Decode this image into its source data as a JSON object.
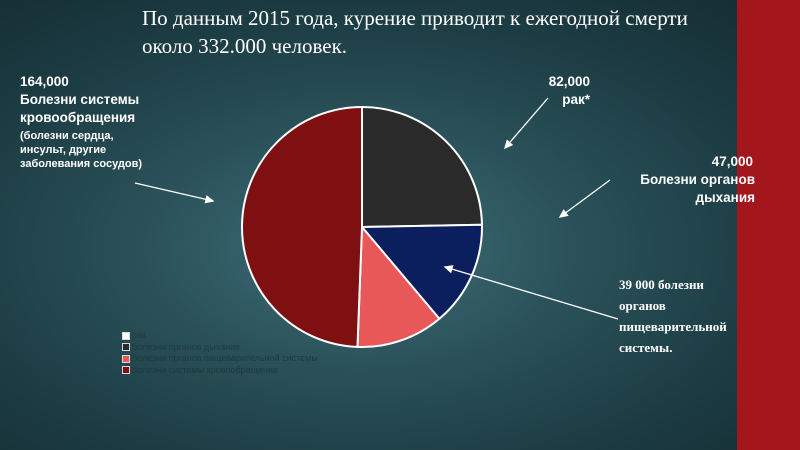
{
  "title": "По данным 2015 года, курение приводит к ежегодной смерти около 332.000 человек.",
  "labels": {
    "cardio_value": "164,000",
    "cardio_name": "Болезни системы кровообращения",
    "cardio_note": "(болезни сердца, инсульт, другие заболевания сосудов)",
    "cancer_value": "82,000",
    "cancer_name": "рак*",
    "resp_value": "47,000",
    "resp_name": "Болезни органов дыхания",
    "digest": "39 000 болезни органов пищеварительной системы."
  },
  "chart_data": {
    "type": "pie",
    "slices": [
      {
        "name": "рак",
        "value": 82000,
        "color": "#2a2a2a"
      },
      {
        "name": "болезни органов дыхания",
        "value": 47000,
        "color": "#0b1f5e"
      },
      {
        "name": "болезни органов пищеварительной системы",
        "value": 39000,
        "color": "#e85858"
      },
      {
        "name": "болезни системы кровообращения",
        "value": 164000,
        "color": "#7f1012"
      }
    ],
    "legend": [
      {
        "label": "рак",
        "color": "#ffffff"
      },
      {
        "label": "болезни органов дыхания",
        "color": "#2a2a2a"
      },
      {
        "label": "болезни органов пищеварительной системы",
        "color": "#e85858"
      },
      {
        "label": "болезни системы кровообращения",
        "color": "#7f1012"
      }
    ],
    "legend_position": "bottom-left"
  }
}
